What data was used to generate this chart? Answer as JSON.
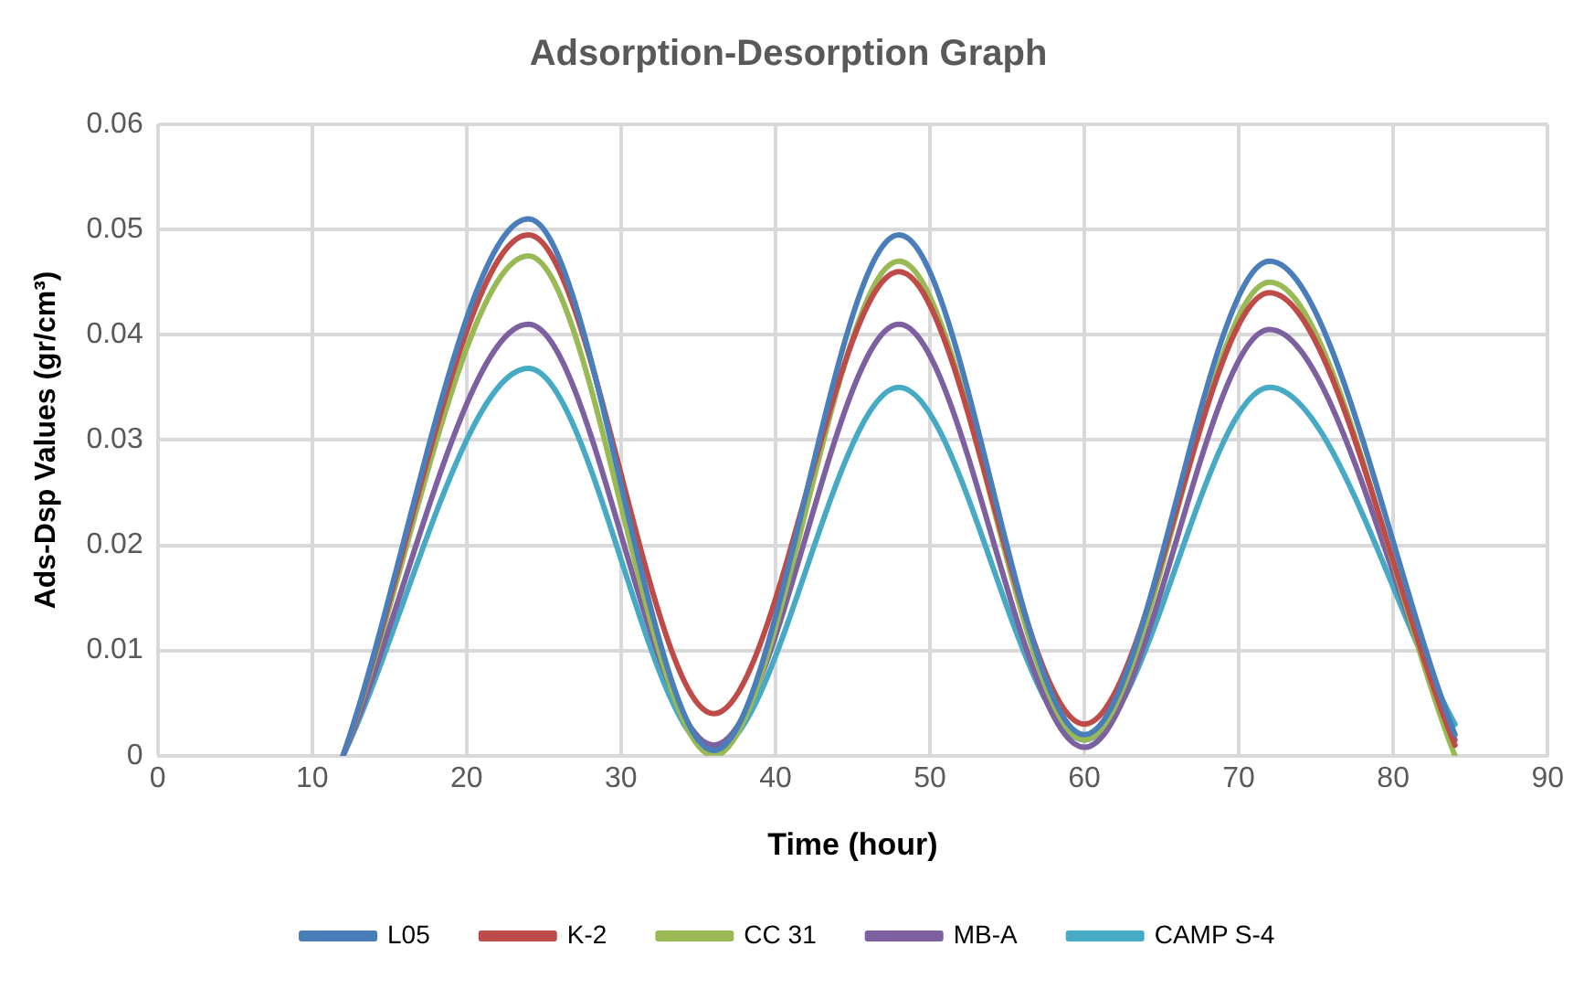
{
  "chart_data": {
    "type": "line",
    "title": "Adsorption-Desorption Graph",
    "xlabel": "Time (hour)",
    "ylabel": "Ads-Dsp Values (gr/cm³)",
    "x": [
      12,
      24,
      36,
      48,
      60,
      72,
      84
    ],
    "series": [
      {
        "name": "L05",
        "color": "#4a7ebb",
        "values": [
          0,
          0.051,
          0.0005,
          0.0495,
          0.002,
          0.047,
          0.002
        ]
      },
      {
        "name": "K-2",
        "color": "#be4b48",
        "values": [
          0,
          0.0495,
          0.004,
          0.046,
          0.003,
          0.044,
          0.001
        ]
      },
      {
        "name": "CC 31",
        "color": "#98b954",
        "values": [
          0,
          0.0475,
          0,
          0.047,
          0.0015,
          0.045,
          0
        ]
      },
      {
        "name": "MB-A",
        "color": "#7d60a0",
        "values": [
          0,
          0.041,
          0.001,
          0.041,
          0.0008,
          0.0405,
          0.0015
        ]
      },
      {
        "name": "CAMP S-4",
        "color": "#46aac5",
        "values": [
          0,
          0.0368,
          0.0005,
          0.035,
          0.0015,
          0.035,
          0.003
        ]
      }
    ],
    "xlim": [
      0,
      90
    ],
    "xticks": [
      0,
      10,
      20,
      30,
      40,
      50,
      60,
      70,
      80,
      90
    ],
    "ylim": [
      0,
      0.06
    ],
    "yticks": [
      0,
      0.01,
      0.02,
      0.03,
      0.04,
      0.05,
      0.06
    ],
    "grid": true,
    "legend": "bottom",
    "marker": "none",
    "line_style": "solid"
  }
}
